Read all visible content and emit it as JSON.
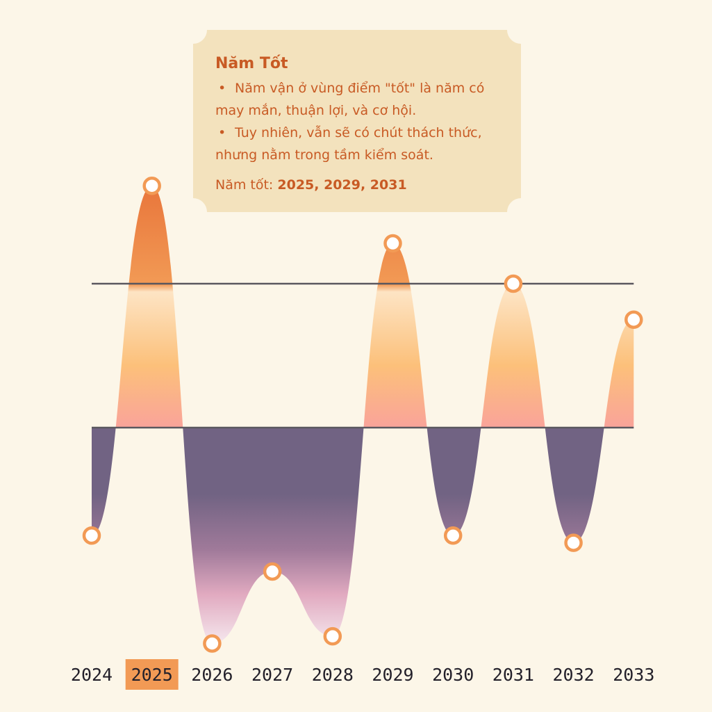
{
  "callout": {
    "title": "Năm Tốt",
    "bullets": [
      "Năm vận ở vùng điểm \"tốt\" là năm có may mắn, thuận lợi, và cơ hội.",
      "Tuy nhiên, vẫn sẽ có chút thách thức, nhưng nằm trong tầm kiểm soát."
    ],
    "note_prefix": "Năm tốt: ",
    "note_years": "2025, 2029, 2031"
  },
  "chart_data": {
    "type": "area",
    "categories": [
      "2024",
      "2025",
      "2026",
      "2027",
      "2028",
      "2029",
      "2030",
      "2031",
      "2032",
      "2033"
    ],
    "values": [
      -0.75,
      1.68,
      -1.5,
      -1.0,
      -1.45,
      1.28,
      -0.75,
      1.0,
      -0.8,
      0.75
    ],
    "baseline": 0,
    "reference_lines": [
      0,
      1
    ],
    "highlighted_category": "2025",
    "colors": {
      "positive_top": "#e8743a",
      "positive_mid": "#fcc07a",
      "positive_bottom": "#f9a39a",
      "negative_top": "#716383",
      "negative_bottom": "#f5eaf1",
      "marker_stroke": "#f29a55",
      "line": "#55535a",
      "highlight": "#f29a55"
    }
  }
}
